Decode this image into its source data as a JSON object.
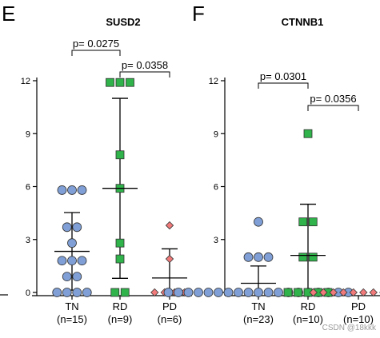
{
  "colors": {
    "TN": "#7f9fd6",
    "RD": "#2fb34a",
    "PD": "#f07a7a",
    "marker_edge": "#333333"
  },
  "marker_shapes": {
    "TN": "circle",
    "RD": "square",
    "PD": "diamond"
  },
  "panel_letters": [
    "E",
    "F"
  ],
  "watermark": "CSDN @18kkk",
  "chart_data": [
    {
      "type": "scatter",
      "panel": "E",
      "title": "SUSD2",
      "ylim": [
        0,
        12
      ],
      "yticks": [
        "0",
        "3",
        "6",
        "9",
        "12"
      ],
      "categories": [
        "TN",
        "RD",
        "PD"
      ],
      "n_labels": [
        "(n=15)",
        "(n=9)",
        "(n=6)"
      ],
      "groups": [
        {
          "name": "TN",
          "values": [
            0,
            0,
            0,
            0,
            0.9,
            0.9,
            1.8,
            1.8,
            1.8,
            2.8,
            3.7,
            3.7,
            5.8,
            5.8,
            5.8
          ],
          "mean": 2.33,
          "sd_low": 0.13,
          "sd_high": 4.53
        },
        {
          "name": "RD",
          "values": [
            0,
            0,
            1.9,
            2.8,
            5.9,
            7.8,
            11.9,
            11.9,
            11.9
          ],
          "mean": 5.9,
          "sd_low": 0.8,
          "sd_high": 11.0
        },
        {
          "name": "PD",
          "values": [
            0,
            0,
            0,
            0,
            1.9,
            3.8
          ],
          "mean": 0.82,
          "sd_low": 0,
          "sd_high": 2.47
        }
      ],
      "comparisons": [
        {
          "from": "TN",
          "to": "RD",
          "label": "p= 0.0275"
        },
        {
          "from": "RD",
          "to": "PD",
          "label": "p= 0.0358"
        }
      ]
    },
    {
      "type": "scatter",
      "panel": "F",
      "title": "CTNNB1",
      "ylim": [
        0,
        12
      ],
      "yticks": [
        "0",
        "3",
        "6",
        "9",
        "12"
      ],
      "categories": [
        "TN",
        "RD",
        "PD"
      ],
      "n_labels": [
        "(n=23)",
        "(n=10)",
        "(n=10)"
      ],
      "groups": [
        {
          "name": "TN",
          "values": [
            0,
            0,
            0,
            0,
            0,
            0,
            0,
            0,
            0,
            0,
            0,
            0,
            0,
            0,
            0,
            0,
            0,
            0,
            0,
            2,
            2,
            2,
            4
          ],
          "mean": 0.52,
          "sd_low": 0,
          "sd_high": 1.5
        },
        {
          "name": "RD",
          "values": [
            0,
            0,
            0,
            0,
            0,
            2,
            2,
            4,
            4,
            9
          ],
          "mean": 2.1,
          "sd_low": 0,
          "sd_high": 5.0
        },
        {
          "name": "PD",
          "values": [
            0,
            0,
            0,
            0,
            0,
            0,
            0,
            0,
            0,
            0
          ],
          "mean": 0,
          "sd_low": 0,
          "sd_high": 0
        }
      ],
      "comparisons": [
        {
          "from": "TN",
          "to": "RD",
          "label": "p= 0.0301"
        },
        {
          "from": "RD",
          "to": "PD",
          "label": "p= 0.0356"
        }
      ]
    }
  ]
}
